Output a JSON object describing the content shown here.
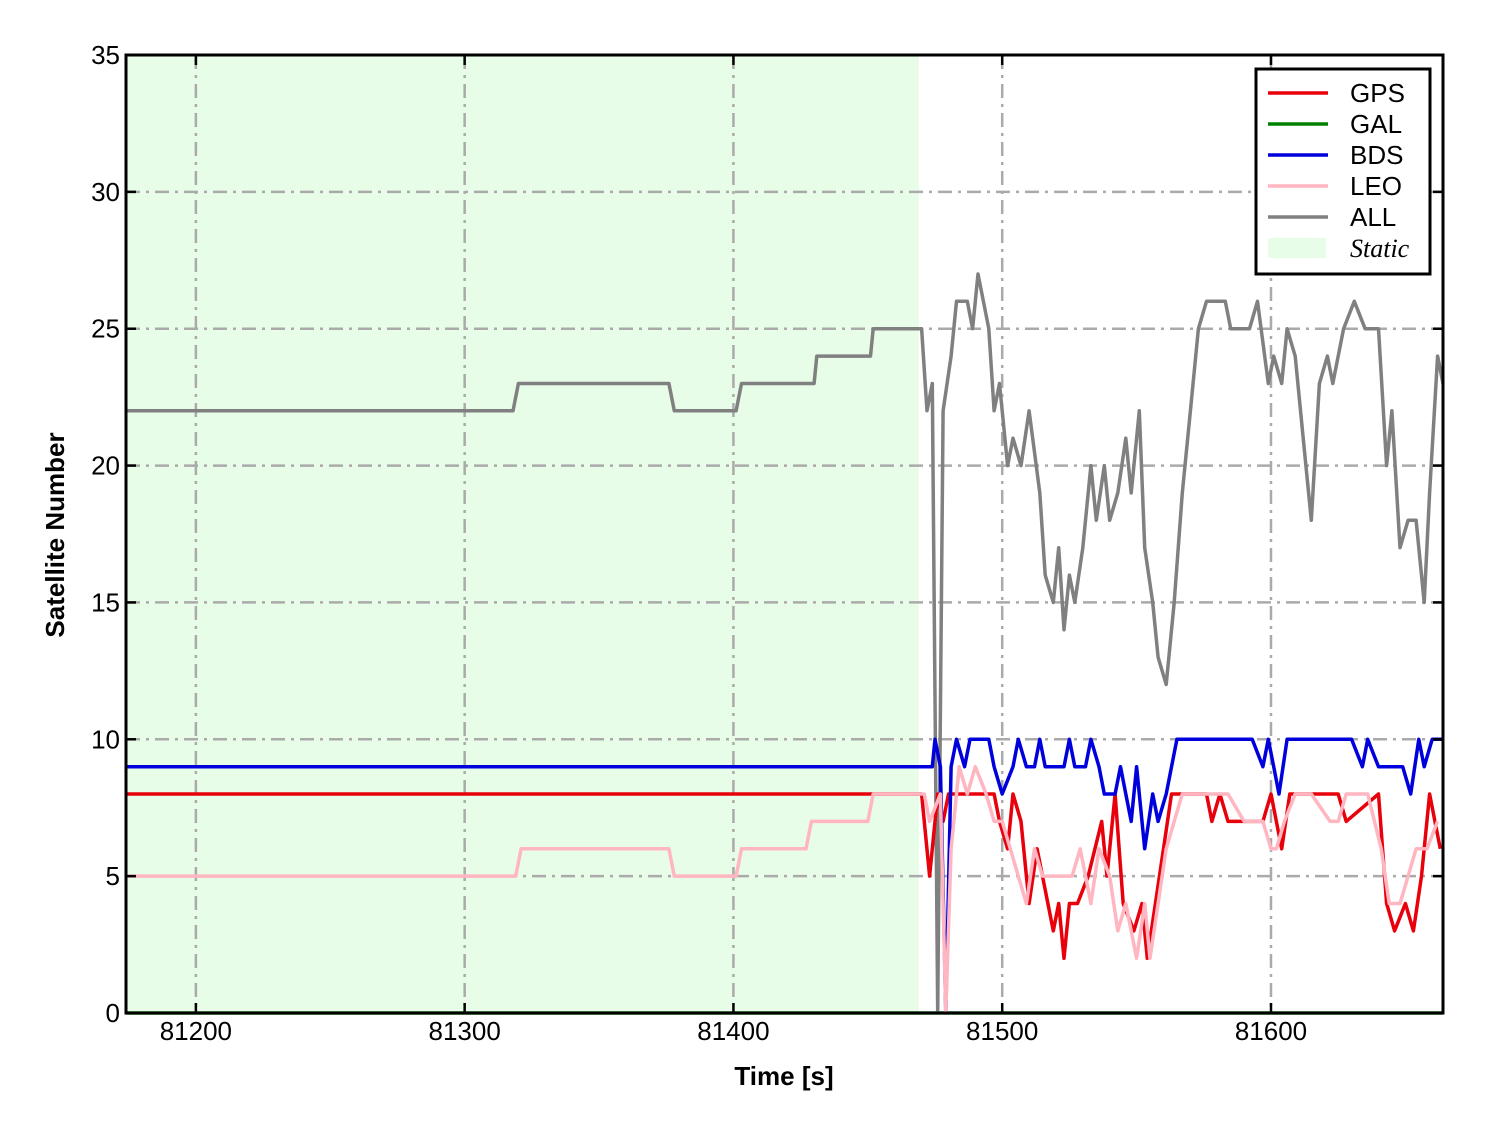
{
  "chart_data": {
    "type": "line",
    "xlabel": "Time [s]",
    "ylabel": "Satellite Number",
    "xlim": [
      81174,
      81664
    ],
    "ylim": [
      0,
      35
    ],
    "xticks": [
      81200,
      81300,
      81400,
      81500,
      81600
    ],
    "xtick_labels": [
      "81200",
      "81300",
      "81400",
      "81500",
      "81600"
    ],
    "yticks": [
      0,
      5,
      10,
      15,
      20,
      25,
      30,
      35
    ],
    "ytick_labels": [
      "0",
      "5",
      "10",
      "15",
      "20",
      "25",
      "30",
      "35"
    ],
    "grid": true,
    "legend_position": "top-right",
    "shaded_region": {
      "name": "Static",
      "x": [
        81174,
        81469
      ],
      "color": "#e8fde8"
    },
    "series": [
      {
        "name": "GPS",
        "color": "#e8000b",
        "points": [
          [
            81174,
            8
          ],
          [
            81470,
            8
          ],
          [
            81473,
            5
          ],
          [
            81476,
            8
          ],
          [
            81478,
            7
          ],
          [
            81480,
            8
          ],
          [
            81497,
            8
          ],
          [
            81499,
            7
          ],
          [
            81502,
            6
          ],
          [
            81504,
            8
          ],
          [
            81507,
            7
          ],
          [
            81510,
            4
          ],
          [
            81513,
            6
          ],
          [
            81517,
            4
          ],
          [
            81519,
            3
          ],
          [
            81521,
            4
          ],
          [
            81523,
            2
          ],
          [
            81525,
            4
          ],
          [
            81528,
            4
          ],
          [
            81532,
            5
          ],
          [
            81537,
            7
          ],
          [
            81539,
            5
          ],
          [
            81542,
            8
          ],
          [
            81545,
            4
          ],
          [
            81549,
            3
          ],
          [
            81552,
            4
          ],
          [
            81554,
            2
          ],
          [
            81557,
            4
          ],
          [
            81560,
            6
          ],
          [
            81563,
            8
          ],
          [
            81576,
            8
          ],
          [
            81578,
            7
          ],
          [
            81581,
            8
          ],
          [
            81584,
            7
          ],
          [
            81597,
            7
          ],
          [
            81600,
            8
          ],
          [
            81604,
            6
          ],
          [
            81607,
            8
          ],
          [
            81625,
            8
          ],
          [
            81628,
            7
          ],
          [
            81640,
            8
          ],
          [
            81643,
            4
          ],
          [
            81646,
            3
          ],
          [
            81650,
            4
          ],
          [
            81653,
            3
          ],
          [
            81656,
            5
          ],
          [
            81659,
            8
          ],
          [
            81663,
            6
          ]
        ]
      },
      {
        "name": "GAL",
        "color": "#008000",
        "points": [
          [
            81174,
            0
          ],
          [
            81664,
            0
          ]
        ]
      },
      {
        "name": "BDS",
        "color": "#0000dd",
        "points": [
          [
            81174,
            9
          ],
          [
            81474,
            9
          ],
          [
            81475,
            10
          ],
          [
            81477,
            9
          ],
          [
            81479,
            0
          ],
          [
            81481,
            9
          ],
          [
            81483,
            10
          ],
          [
            81486,
            9
          ],
          [
            81488,
            10
          ],
          [
            81495,
            10
          ],
          [
            81497,
            9
          ],
          [
            81500,
            8
          ],
          [
            81504,
            9
          ],
          [
            81506,
            10
          ],
          [
            81509,
            9
          ],
          [
            81512,
            9
          ],
          [
            81514,
            10
          ],
          [
            81516,
            9
          ],
          [
            81523,
            9
          ],
          [
            81525,
            10
          ],
          [
            81527,
            9
          ],
          [
            81531,
            9
          ],
          [
            81533,
            10
          ],
          [
            81536,
            9
          ],
          [
            81538,
            8
          ],
          [
            81542,
            8
          ],
          [
            81544,
            9
          ],
          [
            81546,
            8
          ],
          [
            81548,
            7
          ],
          [
            81550,
            9
          ],
          [
            81553,
            6
          ],
          [
            81556,
            8
          ],
          [
            81558,
            7
          ],
          [
            81561,
            8
          ],
          [
            81565,
            10
          ],
          [
            81570,
            10
          ],
          [
            81582,
            10
          ],
          [
            81586,
            10
          ],
          [
            81593,
            10
          ],
          [
            81597,
            9
          ],
          [
            81599,
            10
          ],
          [
            81601,
            9
          ],
          [
            81603,
            8
          ],
          [
            81606,
            10
          ],
          [
            81623,
            10
          ],
          [
            81630,
            10
          ],
          [
            81634,
            9
          ],
          [
            81636,
            10
          ],
          [
            81640,
            9
          ],
          [
            81649,
            9
          ],
          [
            81652,
            8
          ],
          [
            81655,
            10
          ],
          [
            81657,
            9
          ],
          [
            81660,
            10
          ],
          [
            81664,
            10
          ]
        ]
      },
      {
        "name": "LEO",
        "color": "#ffb6c1",
        "points": [
          [
            81174,
            5
          ],
          [
            81319,
            5
          ],
          [
            81321,
            6
          ],
          [
            81376,
            6
          ],
          [
            81378,
            5
          ],
          [
            81401,
            5
          ],
          [
            81403,
            6
          ],
          [
            81427,
            6
          ],
          [
            81429,
            7
          ],
          [
            81450,
            7
          ],
          [
            81452,
            8
          ],
          [
            81471,
            8
          ],
          [
            81473,
            7
          ],
          [
            81477,
            8
          ],
          [
            81479,
            0
          ],
          [
            81481,
            6
          ],
          [
            81484,
            9
          ],
          [
            81487,
            8
          ],
          [
            81490,
            9
          ],
          [
            81494,
            8
          ],
          [
            81497,
            7
          ],
          [
            81500,
            7
          ],
          [
            81503,
            6
          ],
          [
            81506,
            5
          ],
          [
            81509,
            4
          ],
          [
            81512,
            6
          ],
          [
            81515,
            5
          ],
          [
            81519,
            5
          ],
          [
            81521,
            5
          ],
          [
            81523,
            5
          ],
          [
            81526,
            5
          ],
          [
            81529,
            6
          ],
          [
            81533,
            4
          ],
          [
            81536,
            6
          ],
          [
            81540,
            5
          ],
          [
            81543,
            3
          ],
          [
            81546,
            4
          ],
          [
            81550,
            2
          ],
          [
            81553,
            4
          ],
          [
            81555,
            2
          ],
          [
            81558,
            4
          ],
          [
            81561,
            6
          ],
          [
            81564,
            7
          ],
          [
            81567,
            8
          ],
          [
            81580,
            8
          ],
          [
            81584,
            8
          ],
          [
            81590,
            7
          ],
          [
            81597,
            7
          ],
          [
            81600,
            6
          ],
          [
            81602,
            6
          ],
          [
            81605,
            7
          ],
          [
            81609,
            8
          ],
          [
            81615,
            8
          ],
          [
            81622,
            7
          ],
          [
            81625,
            7
          ],
          [
            81628,
            8
          ],
          [
            81636,
            8
          ],
          [
            81641,
            6
          ],
          [
            81644,
            4
          ],
          [
            81648,
            4
          ],
          [
            81651,
            5
          ],
          [
            81654,
            6
          ],
          [
            81658,
            6
          ],
          [
            81662,
            7
          ]
        ]
      },
      {
        "name": "ALL",
        "color": "#808080",
        "points": [
          [
            81174,
            22
          ],
          [
            81318,
            22
          ],
          [
            81320,
            23
          ],
          [
            81376,
            23
          ],
          [
            81378,
            22
          ],
          [
            81401,
            22
          ],
          [
            81403,
            23
          ],
          [
            81430,
            23
          ],
          [
            81431,
            24
          ],
          [
            81451,
            24
          ],
          [
            81452,
            25
          ],
          [
            81470,
            25
          ],
          [
            81472,
            22
          ],
          [
            81474,
            23
          ],
          [
            81476,
            0
          ],
          [
            81478,
            22
          ],
          [
            81481,
            24
          ],
          [
            81483,
            26
          ],
          [
            81487,
            26
          ],
          [
            81489,
            25
          ],
          [
            81491,
            27
          ],
          [
            81493,
            26
          ],
          [
            81495,
            25
          ],
          [
            81497,
            22
          ],
          [
            81499,
            23
          ],
          [
            81502,
            20
          ],
          [
            81504,
            21
          ],
          [
            81507,
            20
          ],
          [
            81510,
            22
          ],
          [
            81514,
            19
          ],
          [
            81516,
            16
          ],
          [
            81519,
            15
          ],
          [
            81521,
            17
          ],
          [
            81523,
            14
          ],
          [
            81525,
            16
          ],
          [
            81527,
            15
          ],
          [
            81530,
            17
          ],
          [
            81533,
            20
          ],
          [
            81535,
            18
          ],
          [
            81538,
            20
          ],
          [
            81540,
            18
          ],
          [
            81543,
            19
          ],
          [
            81546,
            21
          ],
          [
            81548,
            19
          ],
          [
            81551,
            22
          ],
          [
            81553,
            17
          ],
          [
            81556,
            15
          ],
          [
            81558,
            13
          ],
          [
            81561,
            12
          ],
          [
            81564,
            15
          ],
          [
            81567,
            19
          ],
          [
            81570,
            22
          ],
          [
            81573,
            25
          ],
          [
            81576,
            26
          ],
          [
            81583,
            26
          ],
          [
            81585,
            25
          ],
          [
            81592,
            25
          ],
          [
            81595,
            26
          ],
          [
            81599,
            23
          ],
          [
            81601,
            24
          ],
          [
            81604,
            23
          ],
          [
            81606,
            25
          ],
          [
            81609,
            24
          ],
          [
            81612,
            21
          ],
          [
            81615,
            18
          ],
          [
            81618,
            23
          ],
          [
            81621,
            24
          ],
          [
            81623,
            23
          ],
          [
            81627,
            25
          ],
          [
            81631,
            26
          ],
          [
            81635,
            25
          ],
          [
            81640,
            25
          ],
          [
            81643,
            20
          ],
          [
            81645,
            22
          ],
          [
            81648,
            17
          ],
          [
            81651,
            18
          ],
          [
            81654,
            18
          ],
          [
            81657,
            15
          ],
          [
            81659,
            19
          ],
          [
            81662,
            24
          ],
          [
            81664,
            23
          ]
        ]
      }
    ]
  },
  "legend": {
    "items": [
      {
        "label": "GPS",
        "color": "#e8000b",
        "kind": "line"
      },
      {
        "label": "GAL",
        "color": "#008000",
        "kind": "line"
      },
      {
        "label": "BDS",
        "color": "#0000dd",
        "kind": "line"
      },
      {
        "label": "LEO",
        "color": "#ffb6c1",
        "kind": "line"
      },
      {
        "label": "ALL",
        "color": "#808080",
        "kind": "line"
      },
      {
        "label": "Static",
        "color": "#e8fde8",
        "kind": "patch"
      }
    ]
  }
}
